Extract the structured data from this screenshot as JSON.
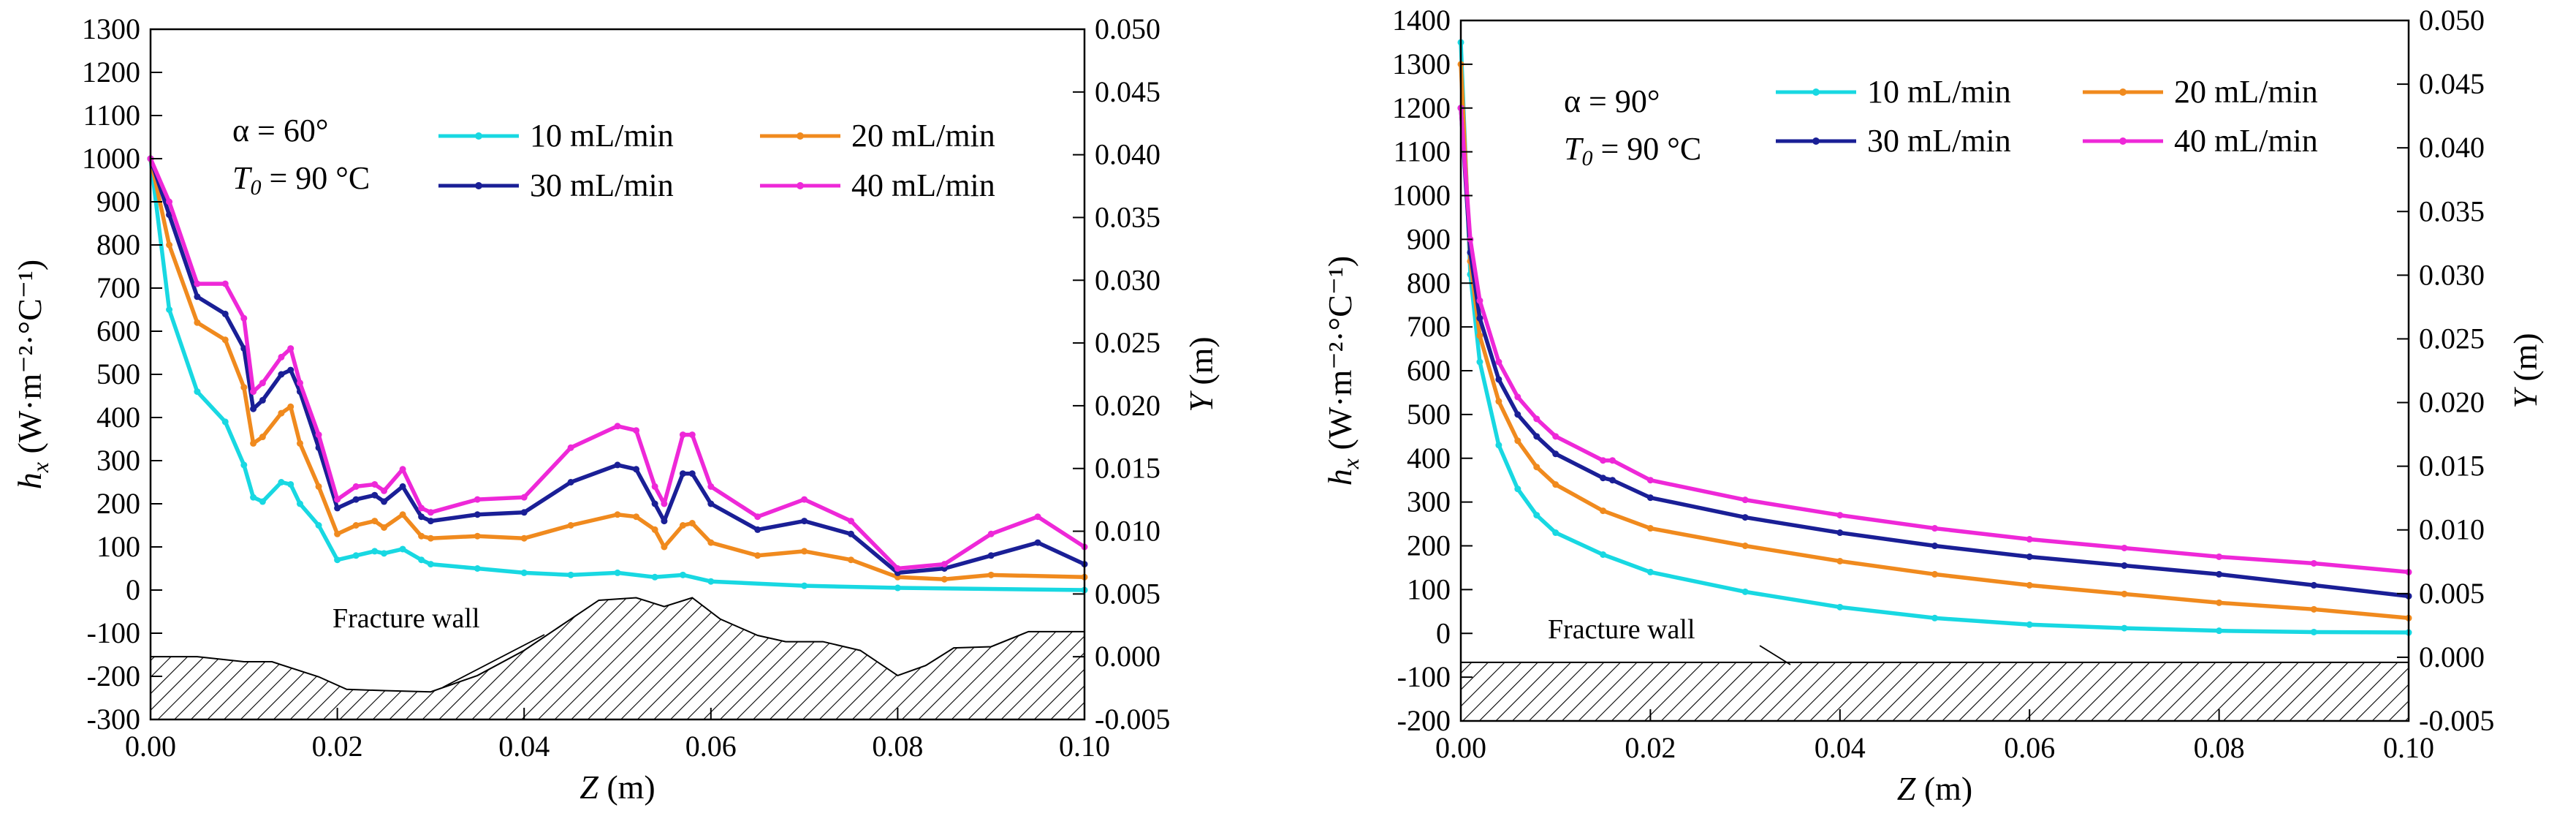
{
  "chart_data": [
    {
      "type": "line",
      "panel": "left",
      "annotation_alpha": "α = 60°",
      "annotation_T0": "= 90 °C",
      "xlabel": "(m)",
      "xlabel_symbol": "Z",
      "ylabel": "(W·m⁻²·°C⁻¹)",
      "ylabel_symbol": "h",
      "ylabel_subscript": "x",
      "y2label": "(m)",
      "y2label_symbol": "Y",
      "xlim": [
        0,
        0.1
      ],
      "ylim": [
        -300,
        1300
      ],
      "y2lim": [
        -0.005,
        0.05
      ],
      "x_ticks": [
        "0.00",
        "0.02",
        "0.04",
        "0.06",
        "0.08",
        "0.10"
      ],
      "y_ticks": [
        "-300",
        "-200",
        "-100",
        "0",
        "100",
        "200",
        "300",
        "400",
        "500",
        "600",
        "700",
        "800",
        "900",
        "1000",
        "1100",
        "1200",
        "1300"
      ],
      "y2_ticks": [
        "-0.005",
        "0.000",
        "0.005",
        "0.010",
        "0.015",
        "0.020",
        "0.025",
        "0.030",
        "0.035",
        "0.040",
        "0.045",
        "0.050"
      ],
      "wall_label": "Fracture wall",
      "wall_type": "rough",
      "wall_profile_y2": {
        "x": [
          0,
          0.005,
          0.01,
          0.013,
          0.018,
          0.021,
          0.025,
          0.03,
          0.035,
          0.04,
          0.045,
          0.048,
          0.052,
          0.055,
          0.058,
          0.061,
          0.065,
          0.068,
          0.072,
          0.076,
          0.08,
          0.083,
          0.086,
          0.09,
          0.094,
          0.1
        ],
        "y": [
          0.0,
          0.0,
          -0.0004,
          -0.0004,
          -0.0016,
          -0.0026,
          -0.0027,
          -0.0028,
          -0.0015,
          0.0005,
          0.003,
          0.0045,
          0.0047,
          0.004,
          0.0047,
          0.003,
          0.0017,
          0.0012,
          0.0012,
          0.0005,
          -0.0015,
          -0.0007,
          0.0007,
          0.0008,
          0.002,
          0.002
        ]
      },
      "series": [
        {
          "name": "10 mL/min",
          "color": "#18d8e2",
          "x": [
            0.0,
            0.002,
            0.005,
            0.008,
            0.01,
            0.011,
            0.012,
            0.014,
            0.015,
            0.016,
            0.018,
            0.02,
            0.022,
            0.024,
            0.025,
            0.027,
            0.029,
            0.03,
            0.035,
            0.04,
            0.045,
            0.05,
            0.054,
            0.057,
            0.06,
            0.07,
            0.08,
            0.1
          ],
          "y": [
            1000,
            650,
            460,
            390,
            290,
            215,
            205,
            250,
            245,
            200,
            150,
            70,
            80,
            90,
            85,
            95,
            70,
            60,
            50,
            40,
            35,
            40,
            30,
            35,
            20,
            10,
            5,
            0
          ]
        },
        {
          "name": "20 mL/min",
          "color": "#f08a1e",
          "x": [
            0.0,
            0.002,
            0.005,
            0.008,
            0.01,
            0.011,
            0.012,
            0.014,
            0.015,
            0.016,
            0.018,
            0.02,
            0.022,
            0.024,
            0.025,
            0.027,
            0.029,
            0.03,
            0.035,
            0.04,
            0.045,
            0.05,
            0.052,
            0.054,
            0.055,
            0.057,
            0.058,
            0.06,
            0.065,
            0.07,
            0.075,
            0.08,
            0.085,
            0.09,
            0.1
          ],
          "y": [
            1000,
            800,
            620,
            580,
            470,
            340,
            355,
            410,
            425,
            340,
            240,
            130,
            150,
            160,
            145,
            175,
            125,
            120,
            125,
            120,
            150,
            175,
            170,
            140,
            100,
            150,
            155,
            110,
            80,
            90,
            70,
            30,
            25,
            35,
            30
          ]
        },
        {
          "name": "30 mL/min",
          "color": "#1a1f96",
          "x": [
            0.0,
            0.002,
            0.005,
            0.008,
            0.01,
            0.011,
            0.012,
            0.014,
            0.015,
            0.016,
            0.018,
            0.02,
            0.022,
            0.024,
            0.025,
            0.027,
            0.029,
            0.03,
            0.035,
            0.04,
            0.045,
            0.05,
            0.052,
            0.054,
            0.055,
            0.057,
            0.058,
            0.06,
            0.065,
            0.07,
            0.075,
            0.08,
            0.085,
            0.09,
            0.095,
            0.1
          ],
          "y": [
            1000,
            870,
            680,
            640,
            560,
            420,
            440,
            500,
            510,
            460,
            330,
            190,
            210,
            220,
            205,
            240,
            170,
            160,
            175,
            180,
            250,
            290,
            280,
            200,
            160,
            270,
            270,
            200,
            140,
            160,
            130,
            40,
            50,
            80,
            110,
            60
          ]
        },
        {
          "name": "40 mL/min",
          "color": "#ee28d8",
          "x": [
            0.0,
            0.002,
            0.005,
            0.008,
            0.01,
            0.011,
            0.012,
            0.014,
            0.015,
            0.016,
            0.018,
            0.02,
            0.022,
            0.024,
            0.025,
            0.027,
            0.029,
            0.03,
            0.035,
            0.04,
            0.045,
            0.05,
            0.052,
            0.054,
            0.055,
            0.057,
            0.058,
            0.06,
            0.065,
            0.07,
            0.075,
            0.08,
            0.085,
            0.09,
            0.095,
            0.1
          ],
          "y": [
            1000,
            900,
            710,
            710,
            630,
            460,
            480,
            540,
            560,
            480,
            360,
            210,
            240,
            245,
            230,
            280,
            190,
            180,
            210,
            215,
            330,
            380,
            370,
            240,
            200,
            360,
            360,
            240,
            170,
            210,
            160,
            50,
            60,
            130,
            170,
            100
          ]
        }
      ]
    },
    {
      "type": "line",
      "panel": "right",
      "annotation_alpha": "α = 90°",
      "annotation_T0": "= 90 °C",
      "xlabel": "(m)",
      "xlabel_symbol": "Z",
      "ylabel": "(W·m⁻²·°C⁻¹)",
      "ylabel_symbol": "h",
      "ylabel_subscript": "x",
      "y2label": "(m)",
      "y2label_symbol": "Y",
      "xlim": [
        0,
        0.1
      ],
      "ylim": [
        -200,
        1400
      ],
      "y2lim": [
        -0.005,
        0.05
      ],
      "x_ticks": [
        "0.00",
        "0.02",
        "0.04",
        "0.06",
        "0.08",
        "0.10"
      ],
      "y_ticks": [
        "-200",
        "-100",
        "0",
        "100",
        "200",
        "300",
        "400",
        "500",
        "600",
        "700",
        "800",
        "900",
        "1000",
        "1100",
        "1200",
        "1300",
        "1400"
      ],
      "y2_ticks": [
        "-0.005",
        "0.000",
        "0.005",
        "0.010",
        "0.015",
        "0.020",
        "0.025",
        "0.030",
        "0.035",
        "0.040",
        "0.045",
        "0.050"
      ],
      "wall_label": "Fracture wall",
      "wall_type": "flat",
      "wall_top_y2": -0.0004,
      "series": [
        {
          "name": "10 mL/min",
          "color": "#18d8e2",
          "x": [
            0.0,
            0.001,
            0.002,
            0.004,
            0.006,
            0.008,
            0.01,
            0.015,
            0.02,
            0.03,
            0.04,
            0.05,
            0.06,
            0.07,
            0.08,
            0.09,
            0.1
          ],
          "y": [
            1350,
            820,
            620,
            430,
            330,
            270,
            230,
            180,
            140,
            95,
            60,
            35,
            20,
            12,
            6,
            3,
            2
          ]
        },
        {
          "name": "20 mL/min",
          "color": "#f08a1e",
          "x": [
            0.0,
            0.001,
            0.002,
            0.004,
            0.006,
            0.008,
            0.01,
            0.015,
            0.02,
            0.03,
            0.04,
            0.05,
            0.06,
            0.07,
            0.08,
            0.09,
            0.1
          ],
          "y": [
            1300,
            850,
            680,
            530,
            440,
            380,
            340,
            280,
            240,
            200,
            165,
            135,
            110,
            90,
            70,
            55,
            35
          ]
        },
        {
          "name": "30 mL/min",
          "color": "#1a1f96",
          "x": [
            0.0,
            0.001,
            0.002,
            0.004,
            0.006,
            0.008,
            0.01,
            0.015,
            0.016,
            0.02,
            0.03,
            0.04,
            0.05,
            0.06,
            0.07,
            0.08,
            0.09,
            0.1
          ],
          "y": [
            1200,
            870,
            720,
            580,
            500,
            450,
            410,
            355,
            350,
            310,
            265,
            230,
            200,
            175,
            155,
            135,
            110,
            85
          ]
        },
        {
          "name": "40 mL/min",
          "color": "#ee28d8",
          "x": [
            0.0,
            0.001,
            0.002,
            0.004,
            0.006,
            0.008,
            0.01,
            0.015,
            0.016,
            0.02,
            0.03,
            0.04,
            0.05,
            0.06,
            0.07,
            0.08,
            0.09,
            0.1
          ],
          "y": [
            1200,
            900,
            760,
            620,
            540,
            490,
            450,
            395,
            395,
            350,
            305,
            270,
            240,
            215,
            195,
            175,
            160,
            140
          ]
        }
      ]
    }
  ]
}
